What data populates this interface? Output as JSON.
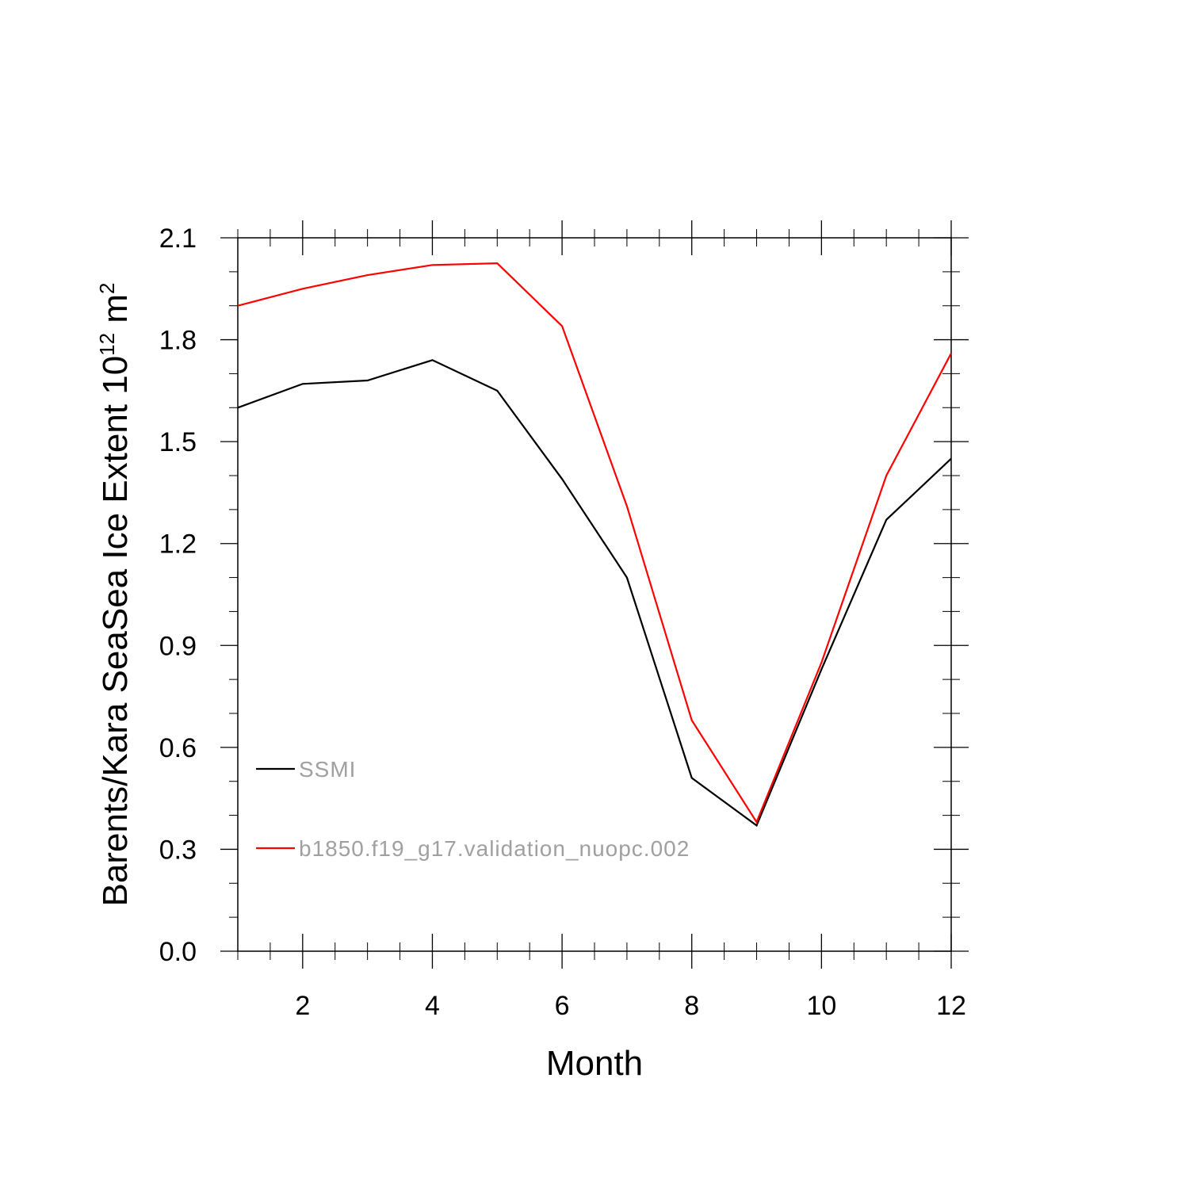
{
  "chart_data": {
    "type": "line",
    "xlabel": "Month",
    "ylabel": {
      "main": "Barents/Kara SeaSea Ice Extent 10",
      "exp1": "12",
      "unit": " m",
      "exp2": "2"
    },
    "xlim": [
      1,
      12
    ],
    "ylim": [
      0.0,
      2.1
    ],
    "x_ticks": [
      2,
      4,
      6,
      8,
      10,
      12
    ],
    "y_ticks": [
      "0.0",
      "0.3",
      "0.6",
      "0.9",
      "1.2",
      "1.5",
      "1.8",
      "2.1"
    ],
    "x": [
      1,
      2,
      3,
      4,
      5,
      6,
      7,
      8,
      9,
      10,
      11,
      12
    ],
    "series": [
      {
        "name": "SSMI",
        "color": "#000000",
        "values": [
          1.6,
          1.67,
          1.68,
          1.74,
          1.65,
          1.39,
          1.1,
          0.51,
          0.37,
          0.83,
          1.27,
          1.45
        ]
      },
      {
        "name": "b1850.f19_g17.validation_nuopc.002",
        "color": "#ff0000",
        "values": [
          1.9,
          1.95,
          1.99,
          2.02,
          2.025,
          1.84,
          1.31,
          0.68,
          0.38,
          0.85,
          1.4,
          1.76
        ]
      }
    ],
    "legend_position": "lower-left",
    "grid": false
  }
}
